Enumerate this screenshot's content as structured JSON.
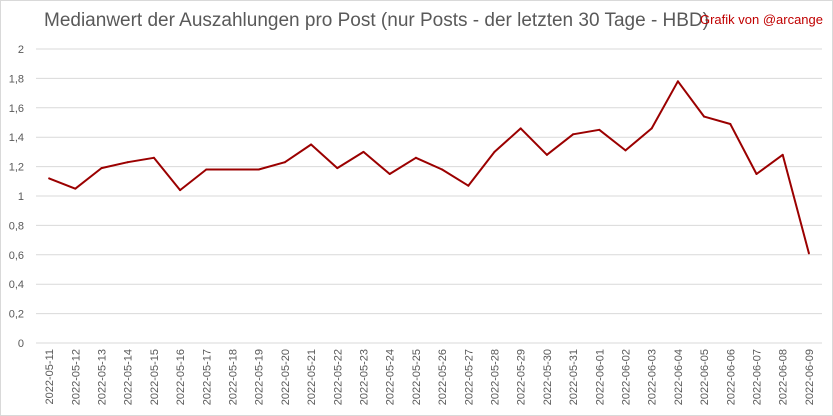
{
  "chart_data": {
    "type": "line",
    "title": "Medianwert der Auszahlungen pro Post (nur Posts - der letzten 30 Tage - HBD)",
    "credit": "Grafik von @arcange",
    "xlabel": "",
    "ylabel": "",
    "ylim": [
      0,
      2
    ],
    "yticks": [
      "0",
      "0,2",
      "0,4",
      "0,6",
      "0,8",
      "1",
      "1,2",
      "1,4",
      "1,6",
      "1,8",
      "2"
    ],
    "grid": true,
    "line_color": "#9b0000",
    "categories": [
      "2022-05-11",
      "2022-05-12",
      "2022-05-13",
      "2022-05-14",
      "2022-05-15",
      "2022-05-16",
      "2022-05-17",
      "2022-05-18",
      "2022-05-19",
      "2022-05-20",
      "2022-05-21",
      "2022-05-22",
      "2022-05-23",
      "2022-05-24",
      "2022-05-25",
      "2022-05-26",
      "2022-05-27",
      "2022-05-28",
      "2022-05-29",
      "2022-05-30",
      "2022-05-31",
      "2022-06-01",
      "2022-06-02",
      "2022-06-03",
      "2022-06-04",
      "2022-06-05",
      "2022-06-06",
      "2022-06-07",
      "2022-06-08",
      "2022-06-09"
    ],
    "series": [
      {
        "values": [
          1.12,
          1.05,
          1.19,
          1.23,
          1.26,
          1.04,
          1.18,
          1.18,
          1.18,
          1.23,
          1.35,
          1.19,
          1.3,
          1.15,
          1.26,
          1.18,
          1.07,
          1.3,
          1.46,
          1.28,
          1.42,
          1.45,
          1.31,
          1.46,
          1.78,
          1.54,
          1.49,
          1.15,
          1.28,
          0.61
        ]
      }
    ]
  }
}
